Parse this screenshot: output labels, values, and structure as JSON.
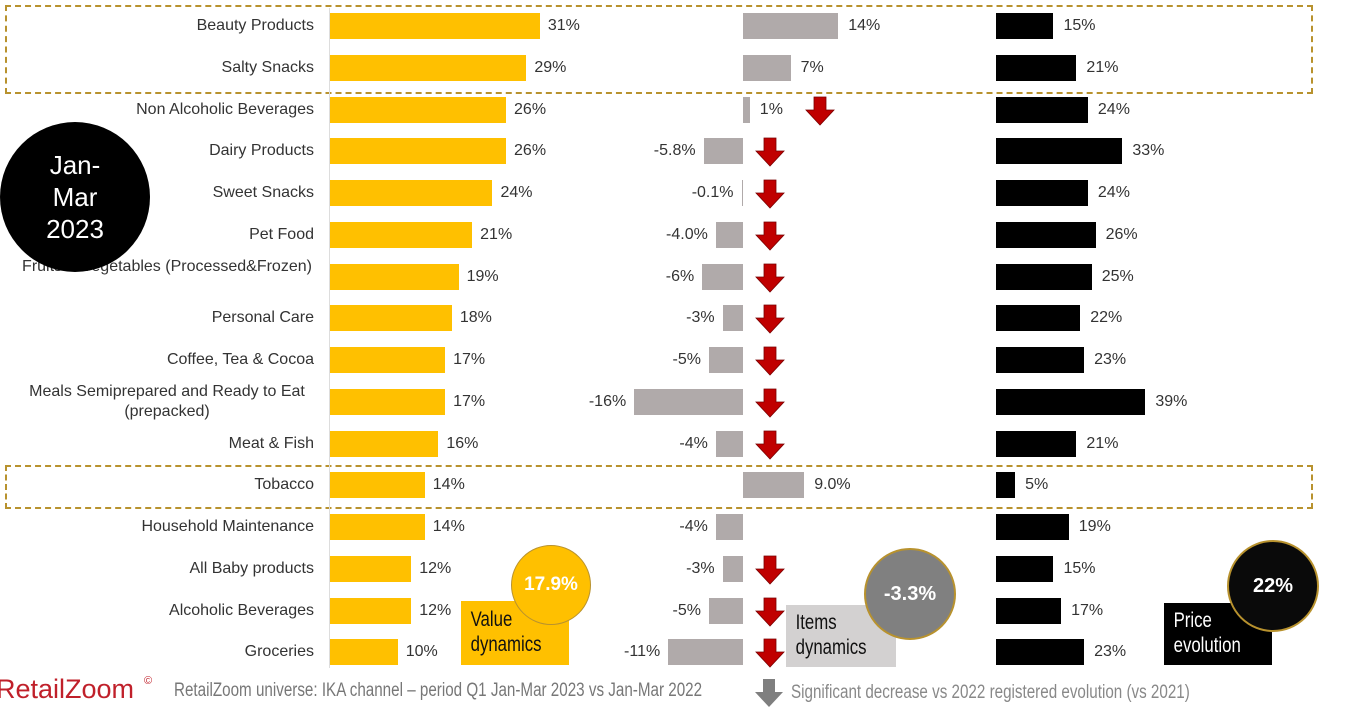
{
  "period_badge": {
    "line1": "Jan-",
    "line2": "Mar",
    "line3": "2023"
  },
  "chart_data": {
    "type": "bar",
    "categories": [
      "Beauty Products",
      "Salty Snacks",
      "Non Alcoholic Beverages",
      "Dairy Products",
      "Sweet Snacks",
      "Pet Food",
      "Fruits & Vegetables (Processed&Frozen)",
      "Personal Care",
      "Coffee, Tea & Cocoa",
      "Meals Semiprepared and Ready to Eat (prepacked)",
      "Meat & Fish",
      "Tobacco",
      "Household Maintenance",
      "All Baby products",
      "Alcoholic Beverages",
      "Groceries"
    ],
    "series": [
      {
        "name": "Value dynamics",
        "color": "#FFC000",
        "values": [
          31,
          29,
          26,
          26,
          24,
          21,
          19,
          18,
          17,
          17,
          16,
          14,
          14,
          12,
          12,
          10
        ],
        "labels": [
          "31%",
          "29%",
          "26%",
          "26%",
          "24%",
          "21%",
          "19%",
          "18%",
          "17%",
          "17%",
          "16%",
          "14%",
          "14%",
          "12%",
          "12%",
          "10%"
        ],
        "total": "17.9%"
      },
      {
        "name": "Items dynamics",
        "color": "#B0AAAA",
        "values": [
          14,
          7,
          1,
          -5.8,
          -0.1,
          -4.0,
          -6,
          -3,
          -5,
          -16,
          -4,
          9.0,
          -4,
          -3,
          -5,
          -11
        ],
        "labels": [
          "14%",
          "7%",
          "1%",
          "-5.8%",
          "-0.1%",
          "-4.0%",
          "-6%",
          "-3%",
          "-5%",
          "-16%",
          "-4%",
          "9.0%",
          "-4%",
          "-3%",
          "-5%",
          "-11%"
        ],
        "significant_decrease": [
          false,
          false,
          true,
          true,
          true,
          true,
          true,
          true,
          true,
          true,
          true,
          false,
          false,
          true,
          true,
          true
        ],
        "total": "-3.3%"
      },
      {
        "name": "Price evolution",
        "color": "#000000",
        "values": [
          15,
          21,
          24,
          33,
          24,
          26,
          25,
          22,
          23,
          39,
          21,
          5,
          19,
          15,
          17,
          23
        ],
        "labels": [
          "15%",
          "21%",
          "24%",
          "33%",
          "24%",
          "26%",
          "25%",
          "22%",
          "23%",
          "39%",
          "21%",
          "5%",
          "19%",
          "15%",
          "17%",
          "23%"
        ],
        "total": "22%"
      }
    ],
    "highlighted_groups": [
      [
        "Beauty Products",
        "Salty Snacks"
      ],
      [
        "Tobacco"
      ]
    ]
  },
  "footer": {
    "logo": "RetailZoom",
    "note": "RetailZoom universe: IKA channel – period Q1 Jan-Mar 2023 vs Jan-Mar 2022",
    "legend": "Significant decrease vs 2022 registered evolution (vs 2021)"
  },
  "colors": {
    "arrow": "#C00000",
    "legend_arrow": "#7f7f7f",
    "dash": "#b8922e"
  }
}
